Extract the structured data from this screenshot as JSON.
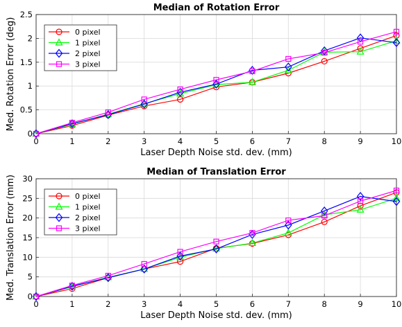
{
  "chart_data": [
    {
      "type": "line",
      "title": "Median of Rotation Error",
      "xlabel": "Laser Depth Noise std. dev. (mm)",
      "ylabel": "Med. Rotation Error (deg)",
      "xlim": [
        0,
        10
      ],
      "ylim": [
        0,
        2.5
      ],
      "xticks": [
        0,
        1,
        2,
        3,
        4,
        5,
        6,
        7,
        8,
        9,
        10
      ],
      "yticks": [
        0,
        0.5,
        1,
        1.5,
        2,
        2.5
      ],
      "ytick_labels": [
        "0",
        "0.5",
        "1",
        "1.5",
        "2",
        "2.5"
      ],
      "grid": true,
      "legend_position": "top-left",
      "x": [
        0,
        1,
        2,
        3,
        4,
        5,
        6,
        7,
        8,
        9,
        10
      ],
      "series": [
        {
          "name": "0 pixel",
          "color": "#ff0000",
          "marker": "circle",
          "values": [
            0,
            0.17,
            0.39,
            0.58,
            0.72,
            0.98,
            1.08,
            1.27,
            1.52,
            1.79,
            2.06
          ]
        },
        {
          "name": "1 pixel",
          "color": "#00ff00",
          "marker": "triangle",
          "values": [
            0,
            0.2,
            0.41,
            0.63,
            0.84,
            1.03,
            1.08,
            1.33,
            1.71,
            1.72,
            1.95
          ]
        },
        {
          "name": "2 pixel",
          "color": "#0000ff",
          "marker": "diamond",
          "values": [
            0,
            0.21,
            0.4,
            0.62,
            0.87,
            1.04,
            1.33,
            1.4,
            1.74,
            2.01,
            1.91
          ]
        },
        {
          "name": "3 pixel",
          "color": "#ff00ff",
          "marker": "square",
          "values": [
            0,
            0.23,
            0.45,
            0.72,
            0.93,
            1.13,
            1.31,
            1.57,
            1.7,
            1.93,
            2.14
          ]
        }
      ]
    },
    {
      "type": "line",
      "title": "Median of Translation Error",
      "xlabel": "Laser Depth Noise std. dev. (mm)",
      "ylabel": "Med. Translation Error (mm)",
      "xlim": [
        0,
        10
      ],
      "ylim": [
        0,
        30
      ],
      "xticks": [
        0,
        1,
        2,
        3,
        4,
        5,
        6,
        7,
        8,
        9,
        10
      ],
      "yticks": [
        0,
        5,
        10,
        15,
        20,
        25,
        30
      ],
      "ytick_labels": [
        "0",
        "5",
        "10",
        "15",
        "20",
        "25",
        "30"
      ],
      "grid": true,
      "legend_position": "top-left",
      "x": [
        0,
        1,
        2,
        3,
        4,
        5,
        6,
        7,
        8,
        9,
        10
      ],
      "series": [
        {
          "name": "0 pixel",
          "color": "#ff0000",
          "marker": "circle",
          "values": [
            0,
            2.0,
            4.8,
            7.0,
            8.9,
            12.3,
            13.5,
            15.7,
            19.0,
            23.1,
            26.5
          ]
        },
        {
          "name": "1 pixel",
          "color": "#00ff00",
          "marker": "triangle",
          "values": [
            0,
            2.5,
            4.9,
            7.0,
            10.0,
            12.2,
            13.6,
            16.2,
            20.8,
            22.1,
            25.0
          ]
        },
        {
          "name": "2 pixel",
          "color": "#0000ff",
          "marker": "diamond",
          "values": [
            0,
            2.6,
            4.8,
            7.0,
            10.3,
            12.1,
            15.8,
            18.2,
            21.8,
            25.5,
            24.2
          ]
        },
        {
          "name": "3 pixel",
          "color": "#ff00ff",
          "marker": "square",
          "values": [
            0,
            2.8,
            5.3,
            8.3,
            11.4,
            14.0,
            16.2,
            19.4,
            20.6,
            24.3,
            27.0
          ]
        }
      ]
    }
  ]
}
